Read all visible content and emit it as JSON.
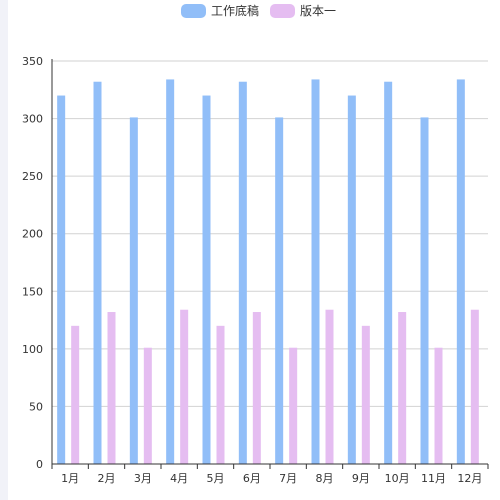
{
  "chart_data": {
    "type": "bar",
    "title": "",
    "xlabel": "",
    "ylabel": "",
    "categories": [
      "1月",
      "2月",
      "3月",
      "4月",
      "5月",
      "6月",
      "7月",
      "8月",
      "9月",
      "10月",
      "11月",
      "12月"
    ],
    "series": [
      {
        "name": "工作底稿",
        "color": "#91bef8",
        "values": [
          320,
          332,
          301,
          334,
          320,
          332,
          301,
          334,
          320,
          332,
          301,
          334
        ]
      },
      {
        "name": "版本一",
        "color": "#e5bdf1",
        "values": [
          120,
          132,
          101,
          134,
          120,
          132,
          101,
          134,
          120,
          132,
          101,
          134
        ]
      }
    ],
    "ylim": [
      0,
      350
    ],
    "yticks": [
      0,
      50,
      100,
      150,
      200,
      250,
      300,
      350
    ],
    "grid": true,
    "legend": "top-center"
  }
}
